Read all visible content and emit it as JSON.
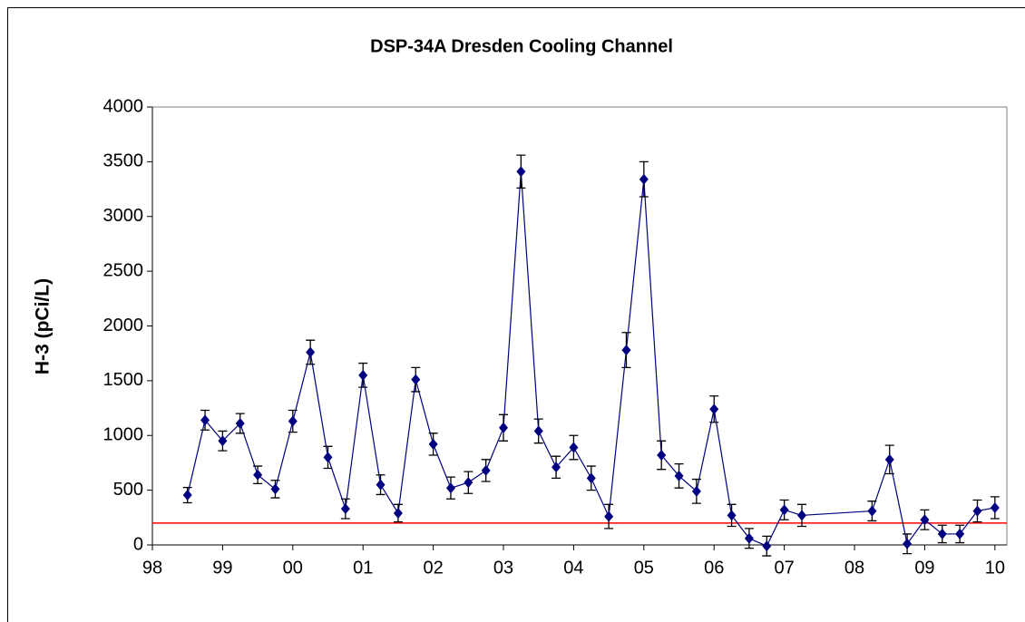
{
  "chart_data": {
    "type": "line",
    "title": "DSP-34A Dresden Cooling Channel",
    "y_label": "H-3 (pCi/L)",
    "x": [
      1998.5,
      1998.75,
      1999.0,
      1999.25,
      1999.5,
      1999.75,
      2000.0,
      2000.25,
      2000.5,
      2000.75,
      2001.0,
      2001.25,
      2001.5,
      2001.75,
      2002.0,
      2002.25,
      2002.5,
      2002.75,
      2003.0,
      2003.25,
      2003.5,
      2003.75,
      2004.0,
      2004.25,
      2004.5,
      2004.75,
      2005.0,
      2005.25,
      2005.5,
      2005.75,
      2006.0,
      2006.25,
      2006.5,
      2006.75,
      2007.0,
      2007.25,
      2008.25,
      2008.5,
      2008.75,
      2009.0,
      2009.25,
      2009.5,
      2009.75,
      2010.0
    ],
    "series": [
      {
        "color": "#000080",
        "values": [
          455,
          1140,
          950,
          1110,
          640,
          510,
          1130,
          1760,
          800,
          330,
          1550,
          550,
          290,
          1510,
          920,
          520,
          570,
          680,
          1070,
          3410,
          1040,
          710,
          890,
          610,
          260,
          1780,
          3340,
          820,
          630,
          490,
          1240,
          270,
          60,
          -10,
          320,
          270,
          310,
          780,
          10,
          230,
          100,
          100,
          310,
          340
        ],
        "errors": [
          70,
          90,
          90,
          90,
          80,
          80,
          100,
          110,
          100,
          90,
          110,
          90,
          80,
          110,
          100,
          100,
          100,
          100,
          120,
          150,
          110,
          100,
          110,
          110,
          110,
          160,
          160,
          130,
          110,
          110,
          120,
          100,
          90,
          90,
          90,
          100,
          90,
          130,
          90,
          90,
          80,
          80,
          100,
          100
        ]
      }
    ],
    "reference_line": {
      "value": 200,
      "color": "#ff0000"
    },
    "xlim": [
      1998,
      2010.17
    ],
    "xticks": [
      {
        "value": 1998,
        "label": "98"
      },
      {
        "value": 1999,
        "label": "99"
      },
      {
        "value": 2000,
        "label": "00"
      },
      {
        "value": 2001,
        "label": "01"
      },
      {
        "value": 2002,
        "label": "02"
      },
      {
        "value": 2003,
        "label": "03"
      },
      {
        "value": 2004,
        "label": "04"
      },
      {
        "value": 2005,
        "label": "05"
      },
      {
        "value": 2006,
        "label": "06"
      },
      {
        "value": 2007,
        "label": "07"
      },
      {
        "value": 2008,
        "label": "08"
      },
      {
        "value": 2009,
        "label": "09"
      },
      {
        "value": 2010,
        "label": "10"
      }
    ],
    "ylim": [
      0,
      4000
    ],
    "yticks": [
      0,
      500,
      1000,
      1500,
      2000,
      2500,
      3000,
      3500,
      4000
    ]
  }
}
